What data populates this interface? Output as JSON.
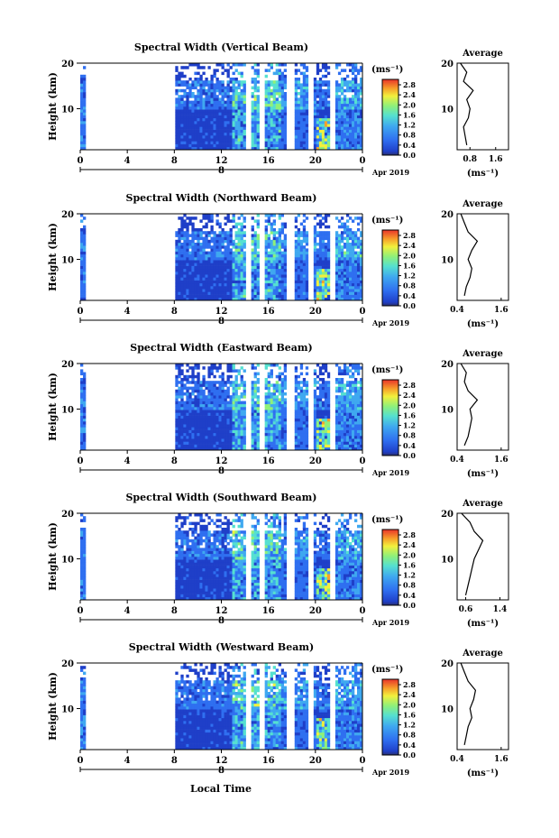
{
  "figure": {
    "xlabel": "Local Time",
    "date_label": "Apr 2019",
    "day_label": "8",
    "x_ticks": [
      "0",
      "4",
      "8",
      "12",
      "16",
      "20",
      "0"
    ],
    "y_ticks": [
      "20",
      "10"
    ],
    "ylabel": "Height (km)",
    "cbar_unit": "(ms⁻¹)",
    "cbar_ticks": [
      "2.8",
      "2.4",
      "2.0",
      "1.6",
      "1.2",
      "0.8",
      "0.4",
      "0.0"
    ],
    "avg_title": "Average",
    "avg_xlabel": "(ms⁻¹)",
    "colors": {
      "axis": "#000000",
      "colormap": [
        "#2a2f6e",
        "#1f3fc8",
        "#2f6ff0",
        "#3fa8f0",
        "#55e0d0",
        "#8ff07a",
        "#f2f03c",
        "#f7a02a",
        "#e8342a"
      ]
    }
  },
  "chart_data": [
    {
      "type": "heatmap",
      "title": "Spectral Width (Vertical Beam)",
      "xlabel": "Local Time",
      "ylabel": "Height (km)",
      "xlim": [
        0,
        24
      ],
      "ylim": [
        1,
        20
      ],
      "colorbar": {
        "label": "(ms⁻¹)",
        "range": [
          0.0,
          3.0
        ]
      },
      "data_gaps_hours": [
        [
          0.5,
          8.0
        ],
        [
          14.1,
          14.6
        ],
        [
          15.3,
          15.8
        ],
        [
          17.6,
          18.2
        ],
        [
          19.3,
          19.8
        ],
        [
          21.2,
          21.7
        ]
      ],
      "average_profile": {
        "title": "Average",
        "xlabel": "(ms⁻¹)",
        "x_ticks": [
          "0.8",
          "1.6"
        ],
        "xlim": [
          0.4,
          2.0
        ],
        "height_km": [
          2,
          4,
          6,
          8,
          10,
          12,
          14,
          16,
          18,
          20
        ],
        "value": [
          0.7,
          0.65,
          0.6,
          0.75,
          0.8,
          0.7,
          0.9,
          0.6,
          0.7,
          0.5
        ]
      }
    },
    {
      "type": "heatmap",
      "title": "Spectral Width (Northward Beam)",
      "xlabel": "Local Time",
      "ylabel": "Height (km)",
      "xlim": [
        0,
        24
      ],
      "ylim": [
        1,
        20
      ],
      "colorbar": {
        "label": "(ms⁻¹)",
        "range": [
          0.0,
          3.0
        ]
      },
      "data_gaps_hours": [
        [
          0.5,
          8.0
        ],
        [
          14.1,
          14.6
        ],
        [
          15.3,
          15.8
        ],
        [
          17.6,
          18.2
        ],
        [
          19.3,
          19.8
        ],
        [
          21.2,
          21.7
        ]
      ],
      "average_profile": {
        "title": "Average",
        "xlabel": "(ms⁻¹)",
        "x_ticks": [
          "0.4",
          "1.6"
        ],
        "xlim": [
          0.4,
          1.8
        ],
        "height_km": [
          2,
          4,
          6,
          8,
          10,
          12,
          14,
          16,
          18,
          20
        ],
        "value": [
          0.6,
          0.65,
          0.75,
          0.8,
          0.7,
          0.8,
          0.95,
          0.7,
          0.6,
          0.5
        ]
      }
    },
    {
      "type": "heatmap",
      "title": "Spectral Width (Eastward Beam)",
      "xlabel": "Local Time",
      "ylabel": "Height (km)",
      "xlim": [
        0,
        24
      ],
      "ylim": [
        1,
        20
      ],
      "colorbar": {
        "label": "(ms⁻¹)",
        "range": [
          0.0,
          3.0
        ]
      },
      "data_gaps_hours": [
        [
          0.5,
          8.0
        ],
        [
          14.1,
          14.6
        ],
        [
          15.3,
          15.8
        ],
        [
          17.6,
          18.2
        ],
        [
          19.3,
          19.8
        ],
        [
          21.2,
          21.7
        ]
      ],
      "average_profile": {
        "title": "Average",
        "xlabel": "(ms⁻¹)",
        "x_ticks": [
          "0.4",
          "1.6"
        ],
        "xlim": [
          0.4,
          1.8
        ],
        "height_km": [
          2,
          4,
          6,
          8,
          10,
          12,
          14,
          16,
          18,
          20
        ],
        "value": [
          0.6,
          0.7,
          0.75,
          0.8,
          0.75,
          0.95,
          0.7,
          0.6,
          0.65,
          0.5
        ]
      }
    },
    {
      "type": "heatmap",
      "title": "Spectral Width (Southward Beam)",
      "xlabel": "Local Time",
      "ylabel": "Height (km)",
      "xlim": [
        0,
        24
      ],
      "ylim": [
        1,
        20
      ],
      "colorbar": {
        "label": "(ms⁻¹)",
        "range": [
          0.0,
          3.0
        ]
      },
      "data_gaps_hours": [
        [
          0.5,
          8.0
        ],
        [
          14.1,
          14.6
        ],
        [
          15.3,
          15.8
        ],
        [
          17.6,
          18.2
        ],
        [
          19.3,
          19.8
        ],
        [
          21.2,
          21.7
        ]
      ],
      "average_profile": {
        "title": "Average",
        "xlabel": "(ms⁻¹)",
        "x_ticks": [
          "0.6",
          "1.4"
        ],
        "xlim": [
          0.4,
          1.6
        ],
        "height_km": [
          2,
          4,
          6,
          8,
          10,
          12,
          14,
          16,
          18,
          20
        ],
        "value": [
          0.6,
          0.65,
          0.7,
          0.75,
          0.8,
          0.9,
          1.0,
          0.8,
          0.7,
          0.5
        ]
      }
    },
    {
      "type": "heatmap",
      "title": "Spectral Width (Westward Beam)",
      "xlabel": "Local Time",
      "ylabel": "Height (km)",
      "xlim": [
        0,
        24
      ],
      "ylim": [
        1,
        20
      ],
      "colorbar": {
        "label": "(ms⁻¹)",
        "range": [
          0.0,
          3.0
        ]
      },
      "data_gaps_hours": [
        [
          0.5,
          8.0
        ],
        [
          14.1,
          14.6
        ],
        [
          15.3,
          15.8
        ],
        [
          17.6,
          18.2
        ],
        [
          19.3,
          19.8
        ],
        [
          21.2,
          21.7
        ]
      ],
      "average_profile": {
        "title": "Average",
        "xlabel": "(ms⁻¹)",
        "x_ticks": [
          "0.4",
          "1.6"
        ],
        "xlim": [
          0.4,
          1.8
        ],
        "height_km": [
          2,
          4,
          6,
          8,
          10,
          12,
          14,
          16,
          18,
          20
        ],
        "value": [
          0.6,
          0.65,
          0.7,
          0.8,
          0.75,
          0.85,
          0.9,
          0.7,
          0.6,
          0.5
        ]
      }
    }
  ]
}
